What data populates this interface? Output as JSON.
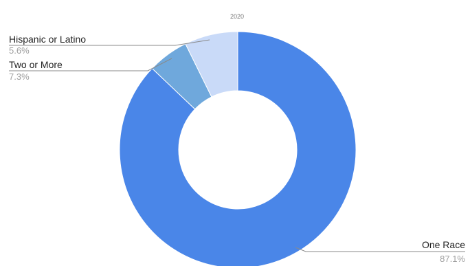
{
  "chart_data": {
    "type": "pie",
    "donut": true,
    "subtitle": "2020",
    "start_angle_deg": 0,
    "direction": "clockwise",
    "slices": [
      {
        "label": "One Race",
        "value": 87.1,
        "display": "87.1%",
        "color": "#4a86e8"
      },
      {
        "label": "Hispanic or Latino",
        "value": 5.6,
        "display": "5.6%",
        "color": "#6fa8dc"
      },
      {
        "label": "Two or More",
        "value": 7.3,
        "display": "7.3%",
        "color": "#c9daf8"
      }
    ],
    "legend": "none"
  }
}
